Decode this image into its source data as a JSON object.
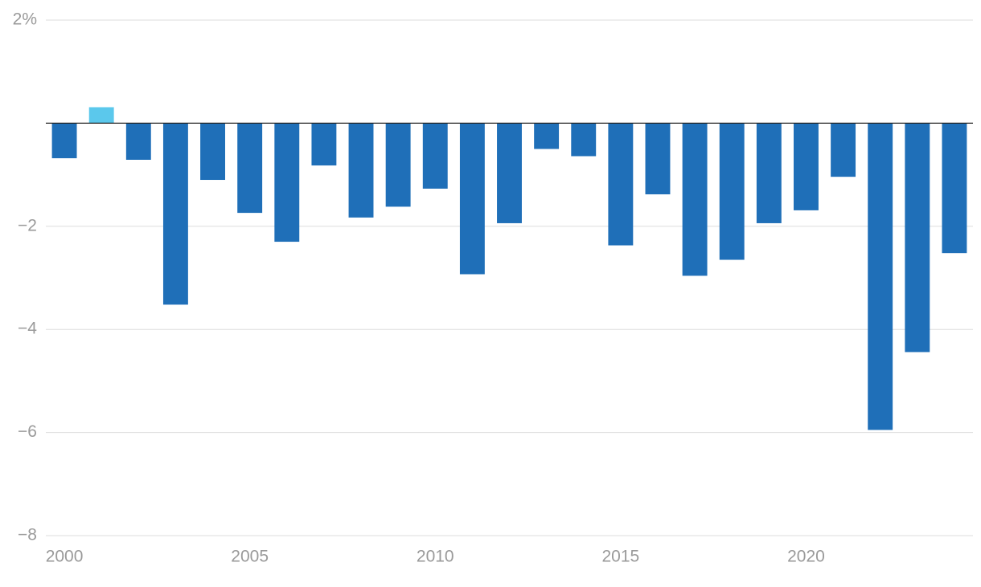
{
  "chart_data": {
    "type": "bar",
    "x": [
      2000,
      2001,
      2002,
      2003,
      2004,
      2005,
      2006,
      2007,
      2008,
      2009,
      2010,
      2011,
      2012,
      2013,
      2014,
      2015,
      2016,
      2017,
      2018,
      2019,
      2020,
      2021,
      2022,
      2023,
      2024
    ],
    "values": [
      -0.68,
      0.31,
      -0.71,
      -3.52,
      -1.1,
      -1.74,
      -2.3,
      -0.82,
      -1.83,
      -1.62,
      -1.27,
      -2.93,
      -1.94,
      -0.5,
      -0.64,
      -2.37,
      -1.38,
      -2.96,
      -2.65,
      -1.94,
      -1.69,
      -1.04,
      -5.95,
      -4.44,
      -2.52
    ],
    "color": "#1f6fb8",
    "positive_color": "#5bc8ec",
    "xlim": [
      1999.5,
      2024.5
    ],
    "xticks": [
      2000,
      2005,
      2010,
      2015,
      2020
    ],
    "ylim": [
      -8,
      2
    ],
    "yticks": [
      {
        "value": 2,
        "label": "2%"
      },
      {
        "value": -2,
        "label": "−2"
      },
      {
        "value": -4,
        "label": "−4"
      },
      {
        "value": -6,
        "label": "−6"
      },
      {
        "value": -8,
        "label": "−8"
      }
    ],
    "grid": true
  }
}
